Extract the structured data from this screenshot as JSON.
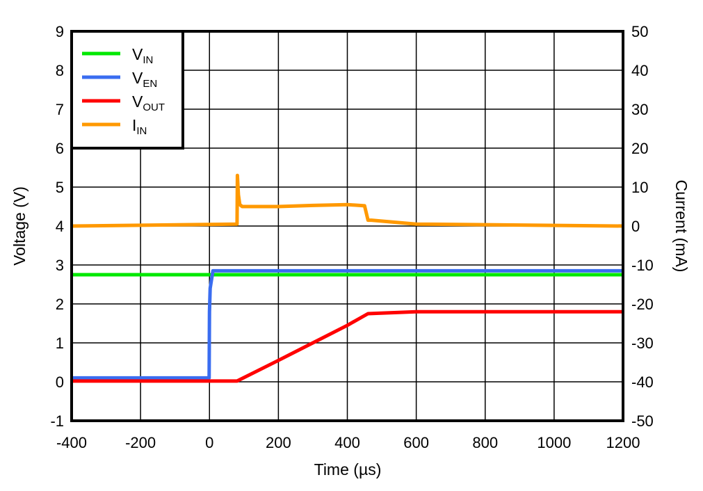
{
  "chart_data": {
    "type": "line",
    "title": "",
    "xlabel": "Time (µs)",
    "ylabel": "Voltage (V)",
    "ylabel_right": "Current (mA)",
    "xlim": [
      -400,
      1200
    ],
    "ylim": [
      -1,
      9
    ],
    "ylim_right": [
      -50,
      50
    ],
    "grid": true,
    "legend_position": "upper-left",
    "x_ticks": [
      "-400",
      "-200",
      "0",
      "200",
      "400",
      "600",
      "800",
      "1000",
      "1200"
    ],
    "y_ticks": [
      "9",
      "8",
      "7",
      "6",
      "5",
      "4",
      "3",
      "2",
      "1",
      "0",
      "-1"
    ],
    "y_ticks_right": [
      "50",
      "40",
      "30",
      "20",
      "10",
      "0",
      "-10",
      "-20",
      "-30",
      "-40",
      "-50"
    ],
    "series": [
      {
        "name": "VIN",
        "label_main": "V",
        "label_sub": "IN",
        "color": "#00e800",
        "axis": "left",
        "x": [
          -400,
          1200
        ],
        "y": [
          2.75,
          2.75
        ]
      },
      {
        "name": "VEN",
        "label_main": "V",
        "label_sub": "EN",
        "color": "#3a6df0",
        "axis": "left",
        "x": [
          -400,
          -1,
          0,
          2,
          10,
          1200
        ],
        "y": [
          0.1,
          0.1,
          1.8,
          2.4,
          2.85,
          2.85
        ]
      },
      {
        "name": "VOUT",
        "label_main": "V",
        "label_sub": "OUT",
        "color": "#ff0000",
        "axis": "left",
        "x": [
          -400,
          80,
          200,
          300,
          400,
          460,
          600,
          1200
        ],
        "y": [
          0.02,
          0.02,
          0.55,
          1.0,
          1.45,
          1.75,
          1.8,
          1.8
        ]
      },
      {
        "name": "IIN",
        "label_main": "I",
        "label_sub": "IN",
        "color": "#ff9900",
        "axis": "right",
        "x": [
          -400,
          80,
          81,
          84,
          88,
          95,
          100,
          200,
          300,
          400,
          450,
          460,
          470,
          600,
          1200
        ],
        "y": [
          0,
          0.5,
          13,
          8,
          5.5,
          5,
          5,
          5,
          5.3,
          5.5,
          5.2,
          1.5,
          1.5,
          0.5,
          0
        ]
      }
    ]
  },
  "axes": {
    "xlabel_main": "Time (",
    "xlabel_unit": "µs",
    "xlabel_end": ")",
    "ylabel": "Voltage (V)",
    "ylabel_right": "Current (mA)"
  }
}
